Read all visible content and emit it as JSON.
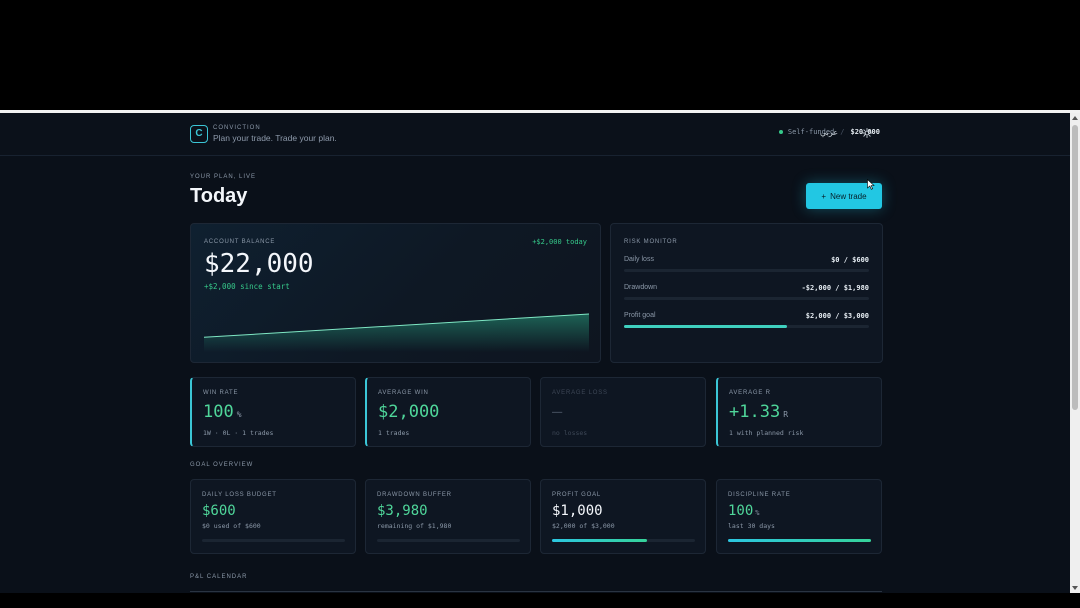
{
  "header": {
    "brand_initial": "C",
    "brand_name": "CONVICTION",
    "tagline": "Plan your trade. Trade your plan.",
    "account_type": "Self-funded",
    "separator": "/",
    "account_balance": "$20,000",
    "language": "عربي",
    "theme_icon": "sun-icon"
  },
  "page": {
    "eyebrow": "YOUR PLAN, LIVE",
    "title": "Today",
    "new_trade_icon": "+",
    "new_trade_label": "New trade"
  },
  "balance": {
    "label": "ACCOUNT BALANCE",
    "today": "+$2,000 today",
    "value": "$22,000",
    "since_start": "+$2,000 since start",
    "sparkline": [
      20000,
      22000
    ]
  },
  "risk": {
    "label": "RISK MONITOR",
    "rows": [
      {
        "name": "Daily loss",
        "value": "$0 / $600",
        "progress": 0
      },
      {
        "name": "Drawdown",
        "value": "-$2,000 / $1,980",
        "progress": 0
      },
      {
        "name": "Profit goal",
        "value": "$2,000 / $3,000",
        "progress": 0.667
      }
    ]
  },
  "stats": [
    {
      "label": "WIN RATE",
      "value": "100",
      "unit": "%",
      "sub": "1W · 0L · 1 trades"
    },
    {
      "label": "AVERAGE WIN",
      "value": "$2,000",
      "unit": "",
      "sub": "1 trades"
    },
    {
      "label": "AVERAGE LOSS",
      "value": "—",
      "unit": "",
      "sub": "no losses"
    },
    {
      "label": "AVERAGE R",
      "value": "+1.33",
      "unit": "R",
      "sub": "1 with planned risk"
    }
  ],
  "goal_section": "GOAL OVERVIEW",
  "goals": [
    {
      "label": "DAILY LOSS BUDGET",
      "value": "$600",
      "unit": "",
      "sub": "$0 used of $600",
      "progress": 0
    },
    {
      "label": "DRAWDOWN BUFFER",
      "value": "$3,980",
      "unit": "",
      "sub": "remaining of $1,980",
      "progress": 0
    },
    {
      "label": "PROFIT GOAL",
      "value": "$1,000",
      "unit": "",
      "sub": "$2,000 of $3,000",
      "progress": 0.667
    },
    {
      "label": "DISCIPLINE RATE",
      "value": "100",
      "unit": "%",
      "sub": "last 30 days",
      "progress": 1.0
    }
  ],
  "calendar_section": "P&L CALENDAR",
  "colors": {
    "accent": "#22c7e3",
    "positive": "#36c98a",
    "background": "#0a1019"
  }
}
